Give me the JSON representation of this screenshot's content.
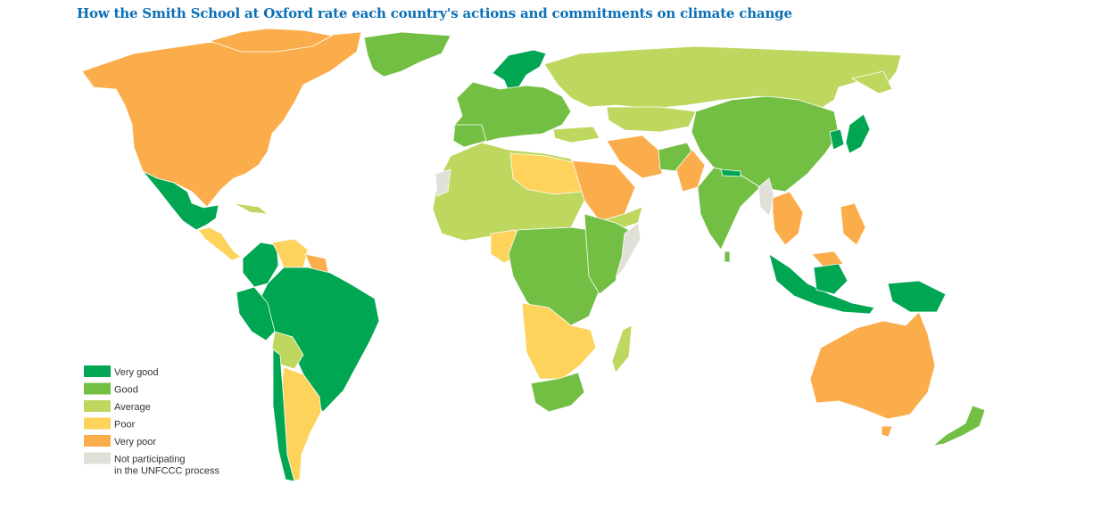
{
  "title": "How the Smith School at Oxford rate each country's actions and commitments on climate change",
  "legend": [
    {
      "label": "Very good",
      "color": "#00a651"
    },
    {
      "label": "Good",
      "color": "#72bf44"
    },
    {
      "label": "Average",
      "color": "#bed75f"
    },
    {
      "label": "Poor",
      "color": "#fdd35c"
    },
    {
      "label": "Very poor",
      "color": "#fbad4c"
    },
    {
      "label": "Not participating\nin the UNFCCC process",
      "color": "#e1e0d8"
    }
  ]
}
